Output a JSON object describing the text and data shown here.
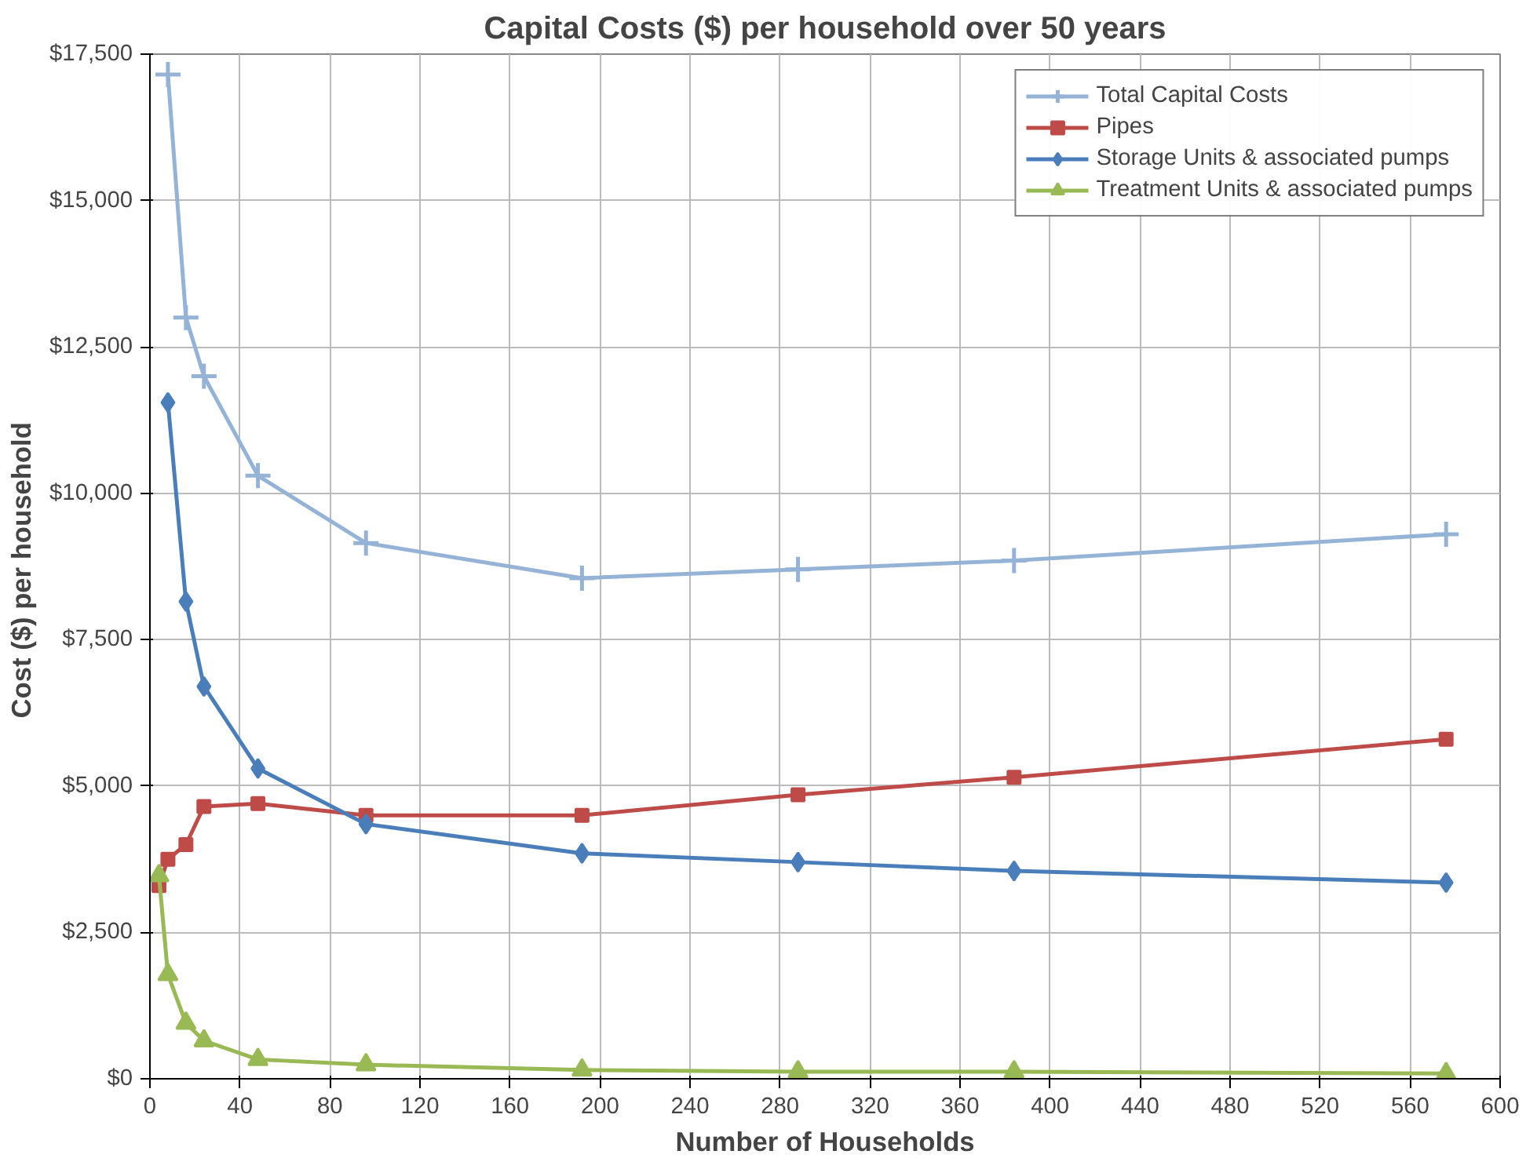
{
  "chart_data": {
    "type": "line",
    "title": "Capital Costs ($) per household over 50 years",
    "xlabel": "Number of Households",
    "ylabel": "Cost ($)  per household",
    "x": [
      4,
      8,
      16,
      24,
      48,
      96,
      192,
      288,
      384,
      576
    ],
    "series": [
      {
        "name": "Total Capital Costs",
        "color": "#95b3d7",
        "marker": "cross",
        "values": [
          null,
          17150,
          13000,
          12000,
          10300,
          9150,
          8550,
          8700,
          8850,
          9300
        ]
      },
      {
        "name": "Pipes",
        "color": "#be4b48",
        "marker": "square",
        "values": [
          3300,
          3750,
          4000,
          4650,
          4700,
          4500,
          4500,
          4850,
          5150,
          5800
        ]
      },
      {
        "name": "Storage Units & associated pumps",
        "color": "#4a7ebb",
        "marker": "diamond",
        "values": [
          null,
          11550,
          8150,
          6700,
          5300,
          4350,
          3850,
          3700,
          3550,
          3350
        ]
      },
      {
        "name": "Treatment Units & associated pumps",
        "color": "#98b954",
        "marker": "triangle",
        "values": [
          3470,
          1780,
          950,
          650,
          330,
          240,
          150,
          120,
          120,
          90
        ]
      }
    ],
    "xlim": [
      0,
      600
    ],
    "xticks": [
      0,
      40,
      80,
      120,
      160,
      200,
      240,
      280,
      320,
      360,
      400,
      440,
      480,
      520,
      560,
      600
    ],
    "ylim": [
      0,
      17500
    ],
    "yticks": [
      {
        "value": 0,
        "label": "$0"
      },
      {
        "value": 2500,
        "label": "$2,500"
      },
      {
        "value": 5000,
        "label": "$5,000"
      },
      {
        "value": 7500,
        "label": "$7,500"
      },
      {
        "value": 10000,
        "label": "$10,000"
      },
      {
        "value": 12500,
        "label": "$12,500"
      },
      {
        "value": 15000,
        "label": "$15,000"
      },
      {
        "value": 17500,
        "label": "$17,500"
      }
    ],
    "grid": true,
    "legend": "top right",
    "line_style": "solid"
  }
}
